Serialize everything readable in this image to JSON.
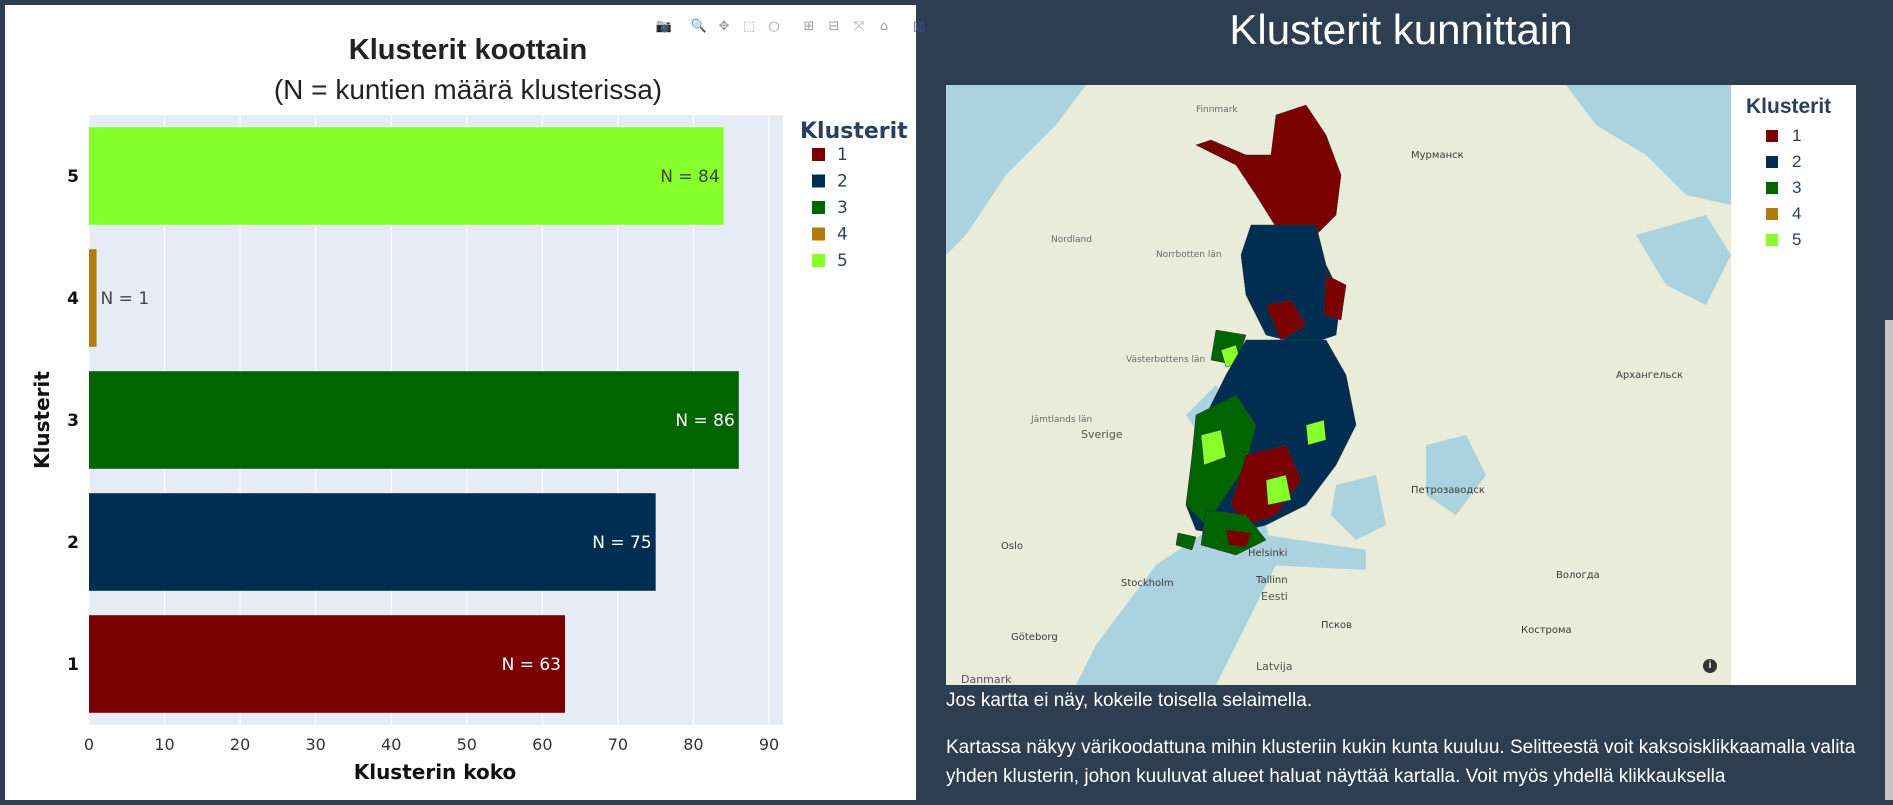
{
  "chart_data": {
    "type": "bar",
    "orientation": "horizontal",
    "title": "Klusterit koottain",
    "subtitle": "(N = kuntien määrä klusterissa)",
    "xlabel": "Klusterin koko",
    "ylabel": "Klusterit",
    "xlim": [
      0,
      90
    ],
    "xticks": [
      "0",
      "10",
      "20",
      "30",
      "40",
      "50",
      "60",
      "70",
      "80",
      "90"
    ],
    "categories": [
      "1",
      "2",
      "3",
      "4",
      "5"
    ],
    "values": [
      63,
      75,
      86,
      1,
      84
    ],
    "data_labels": [
      "N = 63",
      "N = 75",
      "N = 86",
      "N = 1",
      "N = 84"
    ],
    "colors": [
      "#7b0000",
      "#002e52",
      "#006400",
      "#b07d0c",
      "#86ff2a"
    ],
    "grid": true,
    "legend": {
      "title": "Klusterit",
      "position": "right",
      "items": [
        "1",
        "2",
        "3",
        "4",
        "5"
      ]
    }
  },
  "modebar": {
    "icons": [
      "camera-icon",
      "zoom-icon",
      "pan-icon",
      "box-select-icon",
      "lasso-icon",
      "zoom-in-icon",
      "zoom-out-icon",
      "autoscale-icon",
      "reset-axes-icon",
      "plotly-logo-icon"
    ],
    "glyphs": [
      "📷",
      "🔍",
      "✥",
      "⬚",
      "○",
      "⊞",
      "⊟",
      "⤧",
      "⌂",
      "▥"
    ]
  },
  "map": {
    "title": "Klusterit kunnittain",
    "legend_title": "Klusterit",
    "legend_items": [
      "1",
      "2",
      "3",
      "4",
      "5"
    ],
    "legend_colors": [
      "#7b0000",
      "#002e52",
      "#006400",
      "#b07d0c",
      "#86ff2a"
    ],
    "labels": {
      "murmansk": "Мурманск",
      "arkhangelsk": "Архангельск",
      "petrozavodsk": "Петрозаводск",
      "vologda": "Вологда",
      "kostroma": "Кострома",
      "sverige": "Sverige",
      "oslo": "Oslo",
      "stockholm": "Stockholm",
      "goteborg": "Göteborg",
      "tallinn": "Tallinn",
      "eesti": "Eesti",
      "latvija": "Latvija",
      "helsinki": "Helsinki",
      "pskov": "Псков",
      "norrbotten": "Norrbotten län",
      "vasterbotten": "Västerbottens län",
      "jamtlands": "Jämtlands län",
      "finnmark": "Finnmark",
      "nordland": "Nordland",
      "danmark": "Danmark"
    },
    "info_icon": "i",
    "note": "Jos kartta ei näy, kokeile toisella selaimella.",
    "description": "Kartassa näkyy värikoodattuna mihin klusteriin kukin kunta kuuluu. Selitteestä voit kaksoisklikkaamalla valita yhden klusterin, johon kuuluvat alueet haluat näyttää kartalla. Voit myös yhdellä klikkauksella"
  }
}
